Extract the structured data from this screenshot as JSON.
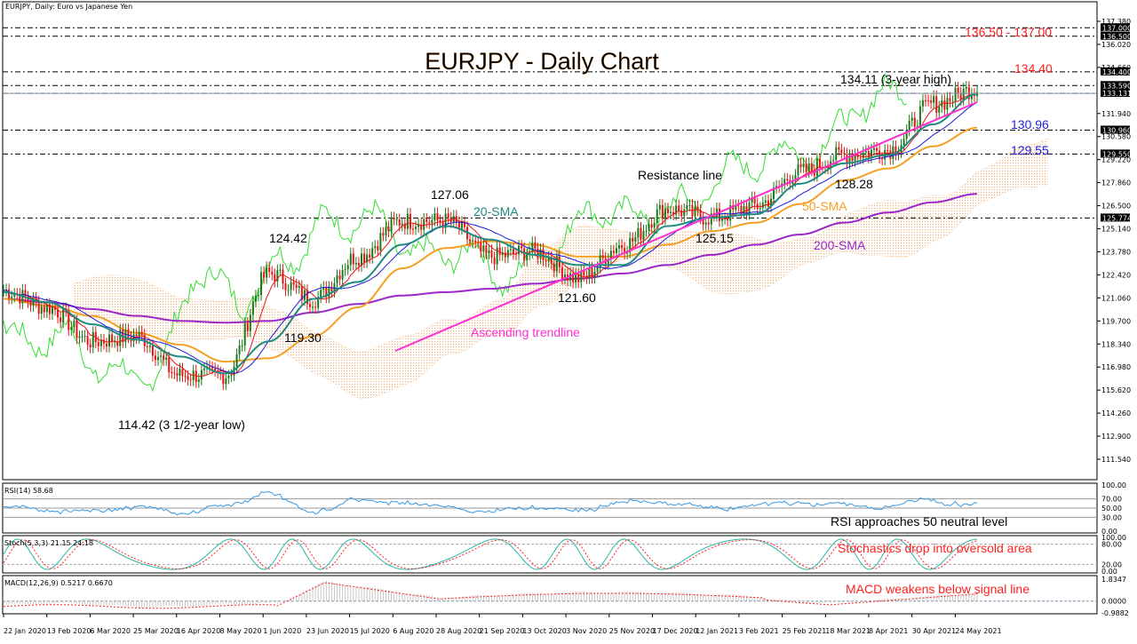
{
  "window": {
    "symbol_caption": "EURJPY, Daily:  Euro vs Japanese Yen"
  },
  "chart_data": {
    "type": "line",
    "title": "EURJPY - Daily Chart",
    "symbol": "EURJPY",
    "timeframe": "Daily",
    "description": "Euro vs Japanese Yen",
    "xlabel": "",
    "ylabel": "",
    "ylim": [
      110.18,
      138.74
    ],
    "grid": false,
    "x_ticks": [
      "22 Jan 2020",
      "13 Feb 2020",
      "6 Mar 2020",
      "25 Mar 2020",
      "16 Apr 2020",
      "8 May 2020",
      "1 Jun 2020",
      "23 Jun 2020",
      "15 Jul 2020",
      "6 Aug 2020",
      "28 Aug 2020",
      "21 Sep 2020",
      "13 Oct 2020",
      "3 Nov 2020",
      "25 Nov 2020",
      "17 Dec 2020",
      "12 Jan 2021",
      "3 Feb 2021",
      "25 Feb 2021",
      "18 Mar 2021",
      "8 Apr 2021",
      "30 Apr 2021",
      "24 May 2021"
    ],
    "y_ticks": [
      "137.380",
      "136.020",
      "134.660",
      "131.940",
      "130.580",
      "129.220",
      "127.860",
      "126.500",
      "125.140",
      "123.780",
      "122.420",
      "121.060",
      "119.700",
      "118.340",
      "116.980",
      "115.620",
      "114.260",
      "112.900",
      "111.540"
    ],
    "price_labels": [
      "137.000",
      "136.500",
      "134.400",
      "133.590",
      "133.131",
      "130.960",
      "129.550",
      "125.774"
    ],
    "horizontal_levels": [
      137.0,
      136.5,
      134.4,
      133.59,
      133.131,
      130.96,
      129.55,
      125.774
    ],
    "series": [
      {
        "name": "Price (close, approx)",
        "color": "#000000",
        "x": [
          "22 Jan 2020",
          "13 Feb 2020",
          "6 Mar 2020",
          "25 Mar 2020",
          "16 Apr 2020",
          "8 May 2020",
          "1 Jun 2020",
          "23 Jun 2020",
          "15 Jul 2020",
          "6 Aug 2020",
          "28 Aug 2020",
          "21 Sep 2020",
          "13 Oct 2020",
          "3 Nov 2020",
          "25 Nov 2020",
          "17 Dec 2020",
          "12 Jan 2021",
          "3 Feb 2021",
          "25 Feb 2021",
          "18 Mar 2021",
          "8 Apr 2021",
          "30 Apr 2021",
          "24 May 2021"
        ],
        "values": [
          121.5,
          120.5,
          118.5,
          118.8,
          116.5,
          116.5,
          122.5,
          121.0,
          123.5,
          125.6,
          125.6,
          123.5,
          123.8,
          122.2,
          124.2,
          126.3,
          125.8,
          126.5,
          128.5,
          129.5,
          129.8,
          132.5,
          133.4
        ]
      },
      {
        "name": "20-SMA",
        "color": "#1e8a80",
        "values": [
          121.4,
          120.8,
          119.5,
          118.6,
          117.6,
          116.6,
          118.5,
          121.0,
          122.0,
          124.2,
          125.3,
          124.5,
          123.6,
          123.0,
          123.0,
          125.3,
          125.8,
          126.0,
          127.8,
          129.0,
          129.5,
          131.3,
          133.1
        ]
      },
      {
        "name": "50-SMA",
        "color": "#f5a023",
        "values": [
          121.0,
          120.6,
          120.0,
          119.0,
          118.3,
          117.3,
          117.5,
          118.8,
          120.5,
          122.8,
          124.0,
          124.4,
          124.2,
          123.5,
          123.5,
          124.2,
          125.0,
          125.5,
          126.6,
          128.0,
          128.7,
          130.0,
          131.1
        ]
      },
      {
        "name": "200-SMA",
        "color": "#9b27c8",
        "values": [
          121.0,
          120.8,
          120.4,
          120.0,
          119.7,
          119.6,
          119.7,
          120.2,
          120.7,
          121.2,
          121.4,
          121.6,
          121.9,
          122.2,
          122.5,
          123.0,
          123.6,
          124.2,
          124.8,
          125.5,
          126.1,
          126.7,
          127.2
        ]
      }
    ],
    "annotations": [
      {
        "text": "114.42 (3 1/2-year low)",
        "value": 114.42
      },
      {
        "text": "119.30",
        "value": 119.3
      },
      {
        "text": "124.42",
        "value": 124.42
      },
      {
        "text": "127.06",
        "value": 127.06
      },
      {
        "text": "121.60",
        "value": 121.6
      },
      {
        "text": "125.15",
        "value": 125.15
      },
      {
        "text": "128.28",
        "value": 128.28
      },
      {
        "text": "134.11 (3-year high)",
        "value": 134.11
      },
      {
        "text": "Resistance line"
      },
      {
        "text": "Ascending trendline"
      },
      {
        "text": "20-SMA"
      },
      {
        "text": "50-SMA"
      },
      {
        "text": "200-SMA"
      },
      {
        "text": "134.40",
        "value": 134.4
      },
      {
        "text": "136.50 - 137.00"
      },
      {
        "text": "130.96",
        "value": 130.96
      },
      {
        "text": "129.55",
        "value": 129.55
      }
    ],
    "indicators": {
      "rsi": {
        "label": "RSI(14) 58.68",
        "period": 14,
        "value": 58.68,
        "ylim": [
          0,
          100
        ],
        "levels": [
          70,
          50,
          30
        ],
        "y_ticks": [
          "100.00",
          "70.00",
          "50.00",
          "30.00",
          "0.00"
        ],
        "note": "RSI approaches 50 neutral level"
      },
      "stoch": {
        "label": "Stoch(5,3,3) 21.15 24.18",
        "params": [
          5,
          3,
          3
        ],
        "k": 21.15,
        "d": 24.18,
        "ylim": [
          0,
          100
        ],
        "levels": [
          80,
          20
        ],
        "y_ticks": [
          "100.00",
          "80.00",
          "20.00",
          "0.00"
        ],
        "note": "Stochastics drop into oversold area"
      },
      "macd": {
        "label": "MACD(12,26,9) 0.5217 0.6670",
        "params": [
          12,
          26,
          9
        ],
        "main": 0.5217,
        "signal": 0.667,
        "y_ticks": [
          "1.8347",
          "0.0000",
          "-0.9882"
        ],
        "ylim": [
          -0.9882,
          1.8347
        ],
        "note": "MACD weakens below signal line"
      }
    }
  },
  "labels": {
    "title": "EURJPY - Daily Chart",
    "low_3_5yr": "114.42 (3 1/2-year low)",
    "l_119": "119.30",
    "l_124": "124.42",
    "l_127": "127.06",
    "l_121": "121.60",
    "l_125": "125.15",
    "l_128": "128.28",
    "high_3yr": "134.11 (3-year high)",
    "resistance": "Resistance line",
    "trendline": "Ascending trendline",
    "sma20": "20-SMA",
    "sma50": "50-SMA",
    "sma200": "200-SMA",
    "r_134": "134.40",
    "r_136": "136.50 - 137.00",
    "s_130": "130.96",
    "s_129": "129.55"
  },
  "colors": {
    "bull": "#1a7a1a",
    "bear": "#e81414",
    "sma20": "#1e8a80",
    "sma50": "#f5a023",
    "sma200": "#9b27c8",
    "trend": "#ff2ed1",
    "chikou": "#33dd33",
    "tenkan": "#e81414",
    "kijun": "#1a1adb",
    "cloud": "#f2b27a",
    "red_text": "#ff2020",
    "blue_text": "#1e1ee0",
    "rsi": "#3399e6",
    "stoch_k": "#2ab5a8",
    "stoch_d": "#ff2020"
  }
}
